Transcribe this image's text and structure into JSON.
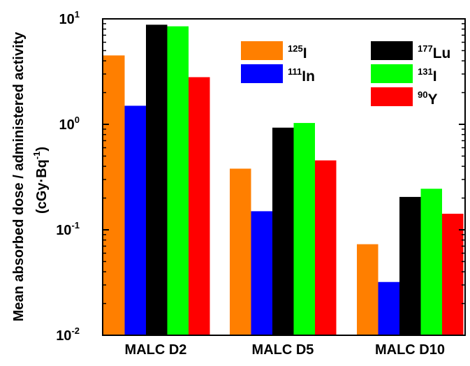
{
  "chart_data": {
    "type": "bar",
    "yscale": "log",
    "ylim": [
      0.01,
      10
    ],
    "ylabel_line1": "Mean absorbed dose / administered activity",
    "ylabel_line2_prefix": "(cGy·Bq",
    "ylabel_line2_sup": "-1",
    "ylabel_line2_suffix": ")",
    "yticks": [
      {
        "value": 10,
        "base": "10",
        "exp": "1"
      },
      {
        "value": 1,
        "base": "10",
        "exp": "0"
      },
      {
        "value": 0.1,
        "base": "10",
        "exp": "-1"
      },
      {
        "value": 0.01,
        "base": "10",
        "exp": "-2"
      }
    ],
    "categories": [
      "MALC D2",
      "MALC D5",
      "MALC D10"
    ],
    "series": [
      {
        "mass": "125",
        "sym": "I",
        "color": "#ff7f00",
        "values": [
          4.5,
          0.38,
          0.073
        ]
      },
      {
        "mass": "111",
        "sym": "In",
        "color": "#0000ff",
        "values": [
          1.5,
          0.15,
          0.032
        ]
      },
      {
        "mass": "177",
        "sym": "Lu",
        "color": "#000000",
        "values": [
          8.8,
          0.93,
          0.205
        ]
      },
      {
        "mass": "131",
        "sym": "I",
        "color": "#00ff00",
        "values": [
          8.5,
          1.03,
          0.245
        ]
      },
      {
        "mass": "90",
        "sym": "Y",
        "color": "#ff0000",
        "values": [
          2.8,
          0.455,
          0.142
        ]
      }
    ],
    "legend_placement": "top-right"
  }
}
